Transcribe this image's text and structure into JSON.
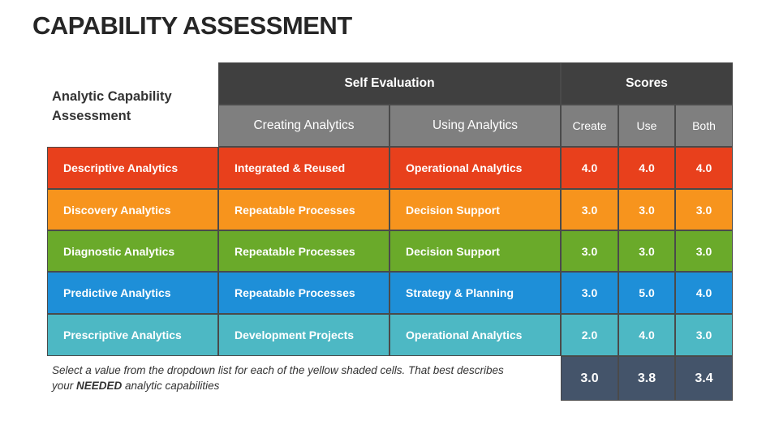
{
  "title": "CAPABILITY ASSESSMENT",
  "table": {
    "corner": "Analytic Capability Assessment",
    "groups": [
      "Self Evaluation",
      "Scores"
    ],
    "columns": [
      "Creating Analytics",
      "Using Analytics",
      "Create",
      "Use",
      "Both"
    ],
    "rows": [
      [
        "Descriptive Analytics",
        "Integrated & Reused",
        "Operational Analytics",
        "4.0",
        "4.0",
        "4.0"
      ],
      [
        "Discovery Analytics",
        "Repeatable Processes",
        "Decision Support",
        "3.0",
        "3.0",
        "3.0"
      ],
      [
        "Diagnostic Analytics",
        "Repeatable Processes",
        "Decision Support",
        "3.0",
        "3.0",
        "3.0"
      ],
      [
        "Predictive Analytics",
        "Repeatable Processes",
        "Strategy & Planning",
        "3.0",
        "5.0",
        "4.0"
      ],
      [
        "Prescriptive Analytics",
        "Development Projects",
        "Operational Analytics",
        "2.0",
        "4.0",
        "3.0"
      ]
    ],
    "totals": [
      "3.0",
      "3.8",
      "3.4"
    ]
  },
  "note": [
    "Select a value from the dropdown list for each of the yellow shaded cells. That best describes your ",
    "NEEDED",
    " analytic capabilities"
  ]
}
